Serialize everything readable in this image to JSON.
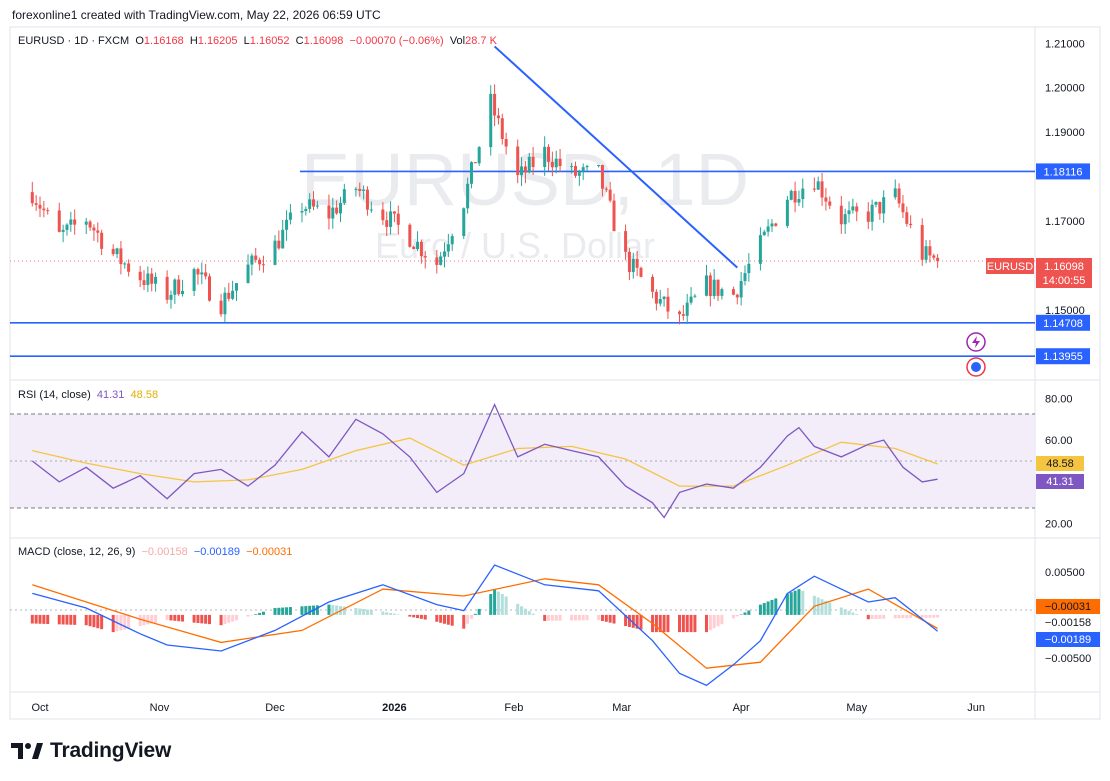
{
  "header": {
    "attribution": "forexonline1 created with TradingView.com, May 22, 2026 06:59 UTC"
  },
  "watermark": {
    "symbol": "EURUSD, 1D",
    "description": "Euro / U.S. Dollar"
  },
  "legend": {
    "symbol": "EURUSD · 1D · FXCM",
    "open_label": "O",
    "open": "1.16168",
    "high_label": "H",
    "high": "1.16205",
    "low_label": "L",
    "low": "1.16052",
    "close_label": "C",
    "close": "1.16098",
    "change": "−0.00070 (−0.06%)",
    "vol_label": "Vol",
    "vol": "28.7 K"
  },
  "colors": {
    "up": "#26a69a",
    "down": "#ef5350",
    "line": "#2962ff",
    "rsi": "#7e57c2",
    "rsi_ma": "#f5c542",
    "macd_signal": "#ff6d00",
    "bg_band": "#ede7f6"
  },
  "badges": {
    "symbol": "EURUSD",
    "last": "1.16098",
    "countdown": "14:00:55"
  },
  "chart_data": [
    {
      "type": "candlestick",
      "title": "EURUSD · 1D · FXCM",
      "y_ticks": [
        "1.21000",
        "1.20000",
        "1.19000",
        "1.17000",
        "1.15000"
      ],
      "ylim": [
        1.136,
        1.213
      ],
      "x_tick_labels": [
        "Oct",
        "Nov",
        "Dec",
        "2026",
        "Feb",
        "Mar",
        "Apr",
        "May",
        "Jun"
      ],
      "last_close": 1.16098,
      "horizontal_levels": [
        {
          "value": 1.18116,
          "label": "1.18116"
        },
        {
          "value": 1.14708,
          "label": "1.14708"
        },
        {
          "value": 1.13955,
          "label": "1.13955"
        }
      ],
      "trendline": {
        "from": {
          "date": "2026-01-27",
          "price": 1.2093
        },
        "to": {
          "date": "2026-03-31",
          "price": 1.1595
        }
      },
      "close_series": [
        {
          "date": "2025-09-29",
          "close": 1.1765
        },
        {
          "date": "2025-10-06",
          "close": 1.1665
        },
        {
          "date": "2025-10-13",
          "close": 1.1705
        },
        {
          "date": "2025-10-20",
          "close": 1.1625
        },
        {
          "date": "2025-10-27",
          "close": 1.1575
        },
        {
          "date": "2025-11-03",
          "close": 1.1535
        },
        {
          "date": "2025-11-10",
          "close": 1.1585
        },
        {
          "date": "2025-11-17",
          "close": 1.1515
        },
        {
          "date": "2025-11-24",
          "close": 1.1595
        },
        {
          "date": "2025-12-01",
          "close": 1.1645
        },
        {
          "date": "2025-12-08",
          "close": 1.1735
        },
        {
          "date": "2025-12-15",
          "close": 1.1715
        },
        {
          "date": "2025-12-22",
          "close": 1.1775
        },
        {
          "date": "2025-12-29",
          "close": 1.1715
        },
        {
          "date": "2026-01-05",
          "close": 1.1665
        },
        {
          "date": "2026-01-12",
          "close": 1.1605
        },
        {
          "date": "2026-01-19",
          "close": 1.1745
        },
        {
          "date": "2026-01-26",
          "close": 1.1965
        },
        {
          "date": "2026-02-02",
          "close": 1.1795
        },
        {
          "date": "2026-02-09",
          "close": 1.1855
        },
        {
          "date": "2026-02-16",
          "close": 1.1805
        },
        {
          "date": "2026-02-23",
          "close": 1.1805
        },
        {
          "date": "2026-03-02",
          "close": 1.1615
        },
        {
          "date": "2026-03-09",
          "close": 1.1535
        },
        {
          "date": "2026-03-16",
          "close": 1.1475
        },
        {
          "date": "2026-03-23",
          "close": 1.1555
        },
        {
          "date": "2026-03-30",
          "close": 1.1535
        },
        {
          "date": "2026-04-06",
          "close": 1.1645
        },
        {
          "date": "2026-04-13",
          "close": 1.1755
        },
        {
          "date": "2026-04-20",
          "close": 1.1795
        },
        {
          "date": "2026-04-27",
          "close": 1.1705
        },
        {
          "date": "2026-05-04",
          "close": 1.1715
        },
        {
          "date": "2026-05-11",
          "close": 1.1755
        },
        {
          "date": "2026-05-18",
          "close": 1.1625
        },
        {
          "date": "2026-05-22",
          "close": 1.16098
        }
      ]
    },
    {
      "type": "line",
      "title": "RSI (14, close)",
      "values_label": [
        "41.31",
        "48.58"
      ],
      "y_ticks": [
        "80.00",
        "60.00",
        "20.00"
      ],
      "ylim": [
        17,
        84
      ],
      "band": [
        30,
        70
      ],
      "series": [
        {
          "name": "RSI",
          "last": 41.31
        },
        {
          "name": "RSI-based MA",
          "last": 48.58
        }
      ],
      "rsi_points": [
        {
          "date": "2025-09-29",
          "value": 50
        },
        {
          "date": "2025-10-06",
          "value": 40
        },
        {
          "date": "2025-10-13",
          "value": 47
        },
        {
          "date": "2025-10-20",
          "value": 37
        },
        {
          "date": "2025-10-27",
          "value": 43
        },
        {
          "date": "2025-11-03",
          "value": 32
        },
        {
          "date": "2025-11-10",
          "value": 44
        },
        {
          "date": "2025-11-17",
          "value": 46
        },
        {
          "date": "2025-11-24",
          "value": 38
        },
        {
          "date": "2025-12-01",
          "value": 48
        },
        {
          "date": "2025-12-08",
          "value": 64
        },
        {
          "date": "2025-12-15",
          "value": 52
        },
        {
          "date": "2025-12-22",
          "value": 70
        },
        {
          "date": "2025-12-29",
          "value": 63
        },
        {
          "date": "2026-01-05",
          "value": 52
        },
        {
          "date": "2026-01-12",
          "value": 35
        },
        {
          "date": "2026-01-19",
          "value": 44
        },
        {
          "date": "2026-01-27",
          "value": 77
        },
        {
          "date": "2026-02-02",
          "value": 52
        },
        {
          "date": "2026-02-09",
          "value": 58
        },
        {
          "date": "2026-02-16",
          "value": 55
        },
        {
          "date": "2026-02-23",
          "value": 52
        },
        {
          "date": "2026-03-02",
          "value": 38
        },
        {
          "date": "2026-03-09",
          "value": 30
        },
        {
          "date": "2026-03-12",
          "value": 23
        },
        {
          "date": "2026-03-16",
          "value": 35
        },
        {
          "date": "2026-03-23",
          "value": 39
        },
        {
          "date": "2026-03-30",
          "value": 37
        },
        {
          "date": "2026-04-06",
          "value": 47
        },
        {
          "date": "2026-04-13",
          "value": 62
        },
        {
          "date": "2026-04-16",
          "value": 66
        },
        {
          "date": "2026-04-20",
          "value": 57
        },
        {
          "date": "2026-04-27",
          "value": 52
        },
        {
          "date": "2026-05-04",
          "value": 58
        },
        {
          "date": "2026-05-08",
          "value": 60
        },
        {
          "date": "2026-05-13",
          "value": 47
        },
        {
          "date": "2026-05-18",
          "value": 40
        },
        {
          "date": "2026-05-22",
          "value": 41.31
        }
      ],
      "ma_points": [
        {
          "date": "2025-09-29",
          "value": 55
        },
        {
          "date": "2025-10-13",
          "value": 49
        },
        {
          "date": "2025-10-27",
          "value": 44
        },
        {
          "date": "2025-11-10",
          "value": 40
        },
        {
          "date": "2025-11-24",
          "value": 41
        },
        {
          "date": "2025-12-08",
          "value": 46
        },
        {
          "date": "2025-12-22",
          "value": 55
        },
        {
          "date": "2026-01-05",
          "value": 61
        },
        {
          "date": "2026-01-19",
          "value": 48
        },
        {
          "date": "2026-02-02",
          "value": 56
        },
        {
          "date": "2026-02-16",
          "value": 57
        },
        {
          "date": "2026-03-02",
          "value": 51
        },
        {
          "date": "2026-03-16",
          "value": 38
        },
        {
          "date": "2026-03-30",
          "value": 38
        },
        {
          "date": "2026-04-13",
          "value": 48
        },
        {
          "date": "2026-04-27",
          "value": 59
        },
        {
          "date": "2026-05-11",
          "value": 56
        },
        {
          "date": "2026-05-22",
          "value": 48.58
        }
      ]
    },
    {
      "type": "bar",
      "title": "MACD (close, 12, 26, 9)",
      "values_label": [
        "−0.00158",
        "−0.00189",
        "−0.00031"
      ],
      "y_ticks": [
        "0.00500",
        "−0.00500"
      ],
      "ylim": [
        -0.0085,
        0.0072
      ],
      "series": [
        {
          "name": "Histogram",
          "last": -0.00031
        },
        {
          "name": "MACD",
          "last": -0.00189
        },
        {
          "name": "Signal",
          "last": -0.00158
        }
      ],
      "macd_points": [
        {
          "date": "2025-09-29",
          "value": 0.0025
        },
        {
          "date": "2025-10-13",
          "value": 0.0008
        },
        {
          "date": "2025-10-27",
          "value": -0.0022
        },
        {
          "date": "2025-11-03",
          "value": -0.0035
        },
        {
          "date": "2025-11-17",
          "value": -0.0042
        },
        {
          "date": "2025-12-01",
          "value": -0.0018
        },
        {
          "date": "2025-12-15",
          "value": 0.0015
        },
        {
          "date": "2025-12-29",
          "value": 0.0035
        },
        {
          "date": "2026-01-12",
          "value": 0.0012
        },
        {
          "date": "2026-01-19",
          "value": 0.0005
        },
        {
          "date": "2026-01-27",
          "value": 0.0058
        },
        {
          "date": "2026-02-09",
          "value": 0.0035
        },
        {
          "date": "2026-02-23",
          "value": 0.0028
        },
        {
          "date": "2026-03-09",
          "value": -0.003
        },
        {
          "date": "2026-03-16",
          "value": -0.0068
        },
        {
          "date": "2026-03-23",
          "value": -0.0082
        },
        {
          "date": "2026-03-30",
          "value": -0.0058
        },
        {
          "date": "2026-04-06",
          "value": -0.003
        },
        {
          "date": "2026-04-13",
          "value": 0.0025
        },
        {
          "date": "2026-04-20",
          "value": 0.0045
        },
        {
          "date": "2026-05-04",
          "value": 0.0015
        },
        {
          "date": "2026-05-11",
          "value": 0.002
        },
        {
          "date": "2026-05-22",
          "value": -0.00189
        }
      ],
      "signal_points": [
        {
          "date": "2025-09-29",
          "value": 0.0035
        },
        {
          "date": "2025-10-27",
          "value": -0.0005
        },
        {
          "date": "2025-11-17",
          "value": -0.0032
        },
        {
          "date": "2025-12-08",
          "value": -0.0018
        },
        {
          "date": "2025-12-29",
          "value": 0.003
        },
        {
          "date": "2026-01-19",
          "value": 0.0022
        },
        {
          "date": "2026-02-09",
          "value": 0.0042
        },
        {
          "date": "2026-02-23",
          "value": 0.0035
        },
        {
          "date": "2026-03-09",
          "value": -0.001
        },
        {
          "date": "2026-03-23",
          "value": -0.0062
        },
        {
          "date": "2026-04-06",
          "value": -0.0055
        },
        {
          "date": "2026-04-20",
          "value": 0.001
        },
        {
          "date": "2026-05-04",
          "value": 0.003
        },
        {
          "date": "2026-05-22",
          "value": -0.00158
        }
      ],
      "histogram_points": [
        {
          "date": "2025-09-29",
          "value": -0.001
        },
        {
          "date": "2025-10-13",
          "value": -0.0012
        },
        {
          "date": "2025-10-20",
          "value": -0.002
        },
        {
          "date": "2025-11-03",
          "value": -0.0006
        },
        {
          "date": "2025-11-17",
          "value": -0.0012
        },
        {
          "date": "2025-12-01",
          "value": 0.0008
        },
        {
          "date": "2025-12-15",
          "value": 0.0012
        },
        {
          "date": "2025-12-29",
          "value": 0.0004
        },
        {
          "date": "2026-01-12",
          "value": -0.0008
        },
        {
          "date": "2026-01-19",
          "value": -0.0016
        },
        {
          "date": "2026-01-27",
          "value": 0.003
        },
        {
          "date": "2026-02-09",
          "value": -0.0007
        },
        {
          "date": "2026-02-23",
          "value": -0.0006
        },
        {
          "date": "2026-03-09",
          "value": -0.002
        },
        {
          "date": "2026-03-23",
          "value": -0.002
        },
        {
          "date": "2026-04-06",
          "value": 0.0012
        },
        {
          "date": "2026-04-16",
          "value": 0.003
        },
        {
          "date": "2026-05-04",
          "value": -0.0005
        },
        {
          "date": "2026-05-11",
          "value": -0.0004
        },
        {
          "date": "2026-05-22",
          "value": -0.00031
        }
      ]
    }
  ],
  "footer": {
    "brand": "TradingView"
  }
}
